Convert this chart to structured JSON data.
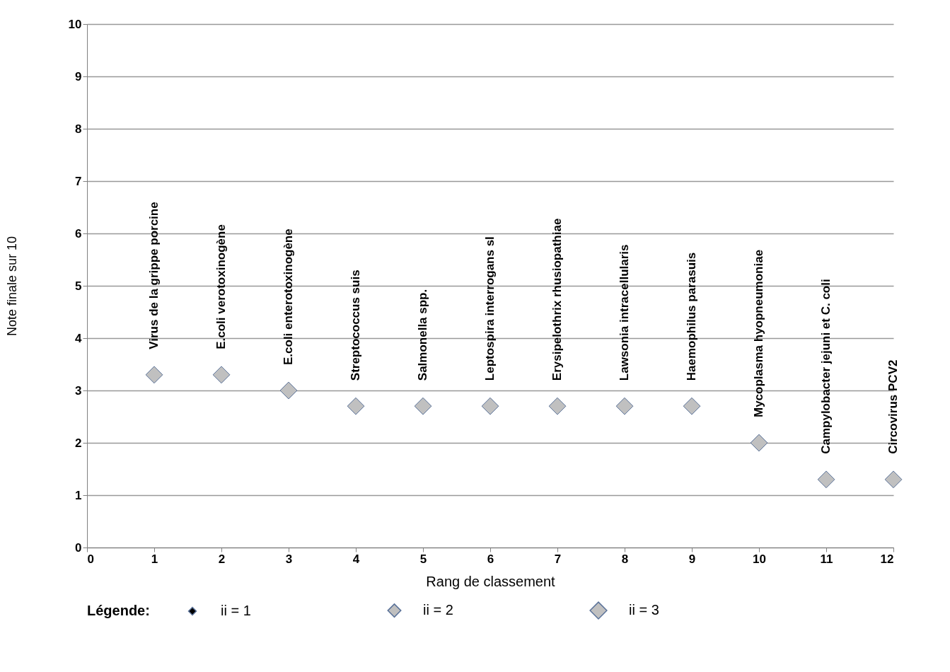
{
  "chart_data": {
    "type": "scatter",
    "xlabel": "Rang de classement",
    "ylabel": "Note finale sur 10",
    "legend_title": "Légende:",
    "x": [
      1,
      2,
      3,
      4,
      5,
      6,
      7,
      8,
      9,
      10,
      11,
      12
    ],
    "series": [
      {
        "name": "ii = 1",
        "color": "#000000",
        "values": [
          null,
          null,
          null,
          null,
          null,
          null,
          null,
          null,
          null,
          null,
          null,
          null
        ]
      },
      {
        "name": "ii = 2",
        "color": "#bfbfbf",
        "values": [
          null,
          null,
          null,
          null,
          null,
          null,
          null,
          null,
          null,
          null,
          null,
          null
        ]
      },
      {
        "name": "ii = 3",
        "color": "#c0c0c0",
        "values": [
          3.3,
          3.3,
          3.0,
          2.7,
          2.7,
          2.7,
          2.7,
          2.7,
          2.7,
          2.0,
          1.3,
          1.3
        ]
      }
    ],
    "annotations": [
      {
        "text": "Virus de la grippe porcine",
        "x": 1,
        "y": 3.3
      },
      {
        "text": "E.coli verotoxinogène",
        "x": 2,
        "y": 3.3
      },
      {
        "text": "E.coli enterotoxinogène",
        "x": 3,
        "y": 3.0
      },
      {
        "text": "Streptococcus suis",
        "x": 4,
        "y": 2.7
      },
      {
        "text": "Salmonella spp.",
        "x": 5,
        "y": 2.7
      },
      {
        "text": "Leptospira interrogans sl",
        "x": 6,
        "y": 2.7
      },
      {
        "text": "Erysipelothrix rhusiopathiae",
        "x": 7,
        "y": 2.7
      },
      {
        "text": "Lawsonia intracellularis",
        "x": 8,
        "y": 2.7
      },
      {
        "text": "Haemophilus parasuis",
        "x": 9,
        "y": 2.7
      },
      {
        "text": "Mycoplasma hyopneumoniae",
        "x": 10,
        "y": 2.0
      },
      {
        "text": "Campylobacter jejuni et C. coli",
        "x": 11,
        "y": 1.3
      },
      {
        "text": "Circovirus PCV2",
        "x": 12,
        "y": 1.3
      }
    ],
    "xlim": [
      0,
      12
    ],
    "xticks": [
      0,
      1,
      2,
      3,
      4,
      5,
      6,
      7,
      8,
      9,
      10,
      11,
      12
    ],
    "ylim": [
      0,
      10
    ],
    "yticks": [
      0,
      1,
      2,
      3,
      4,
      5,
      6,
      7,
      8,
      9,
      10
    ],
    "grid": "y",
    "legend": "bottom",
    "marker": "diamond"
  }
}
